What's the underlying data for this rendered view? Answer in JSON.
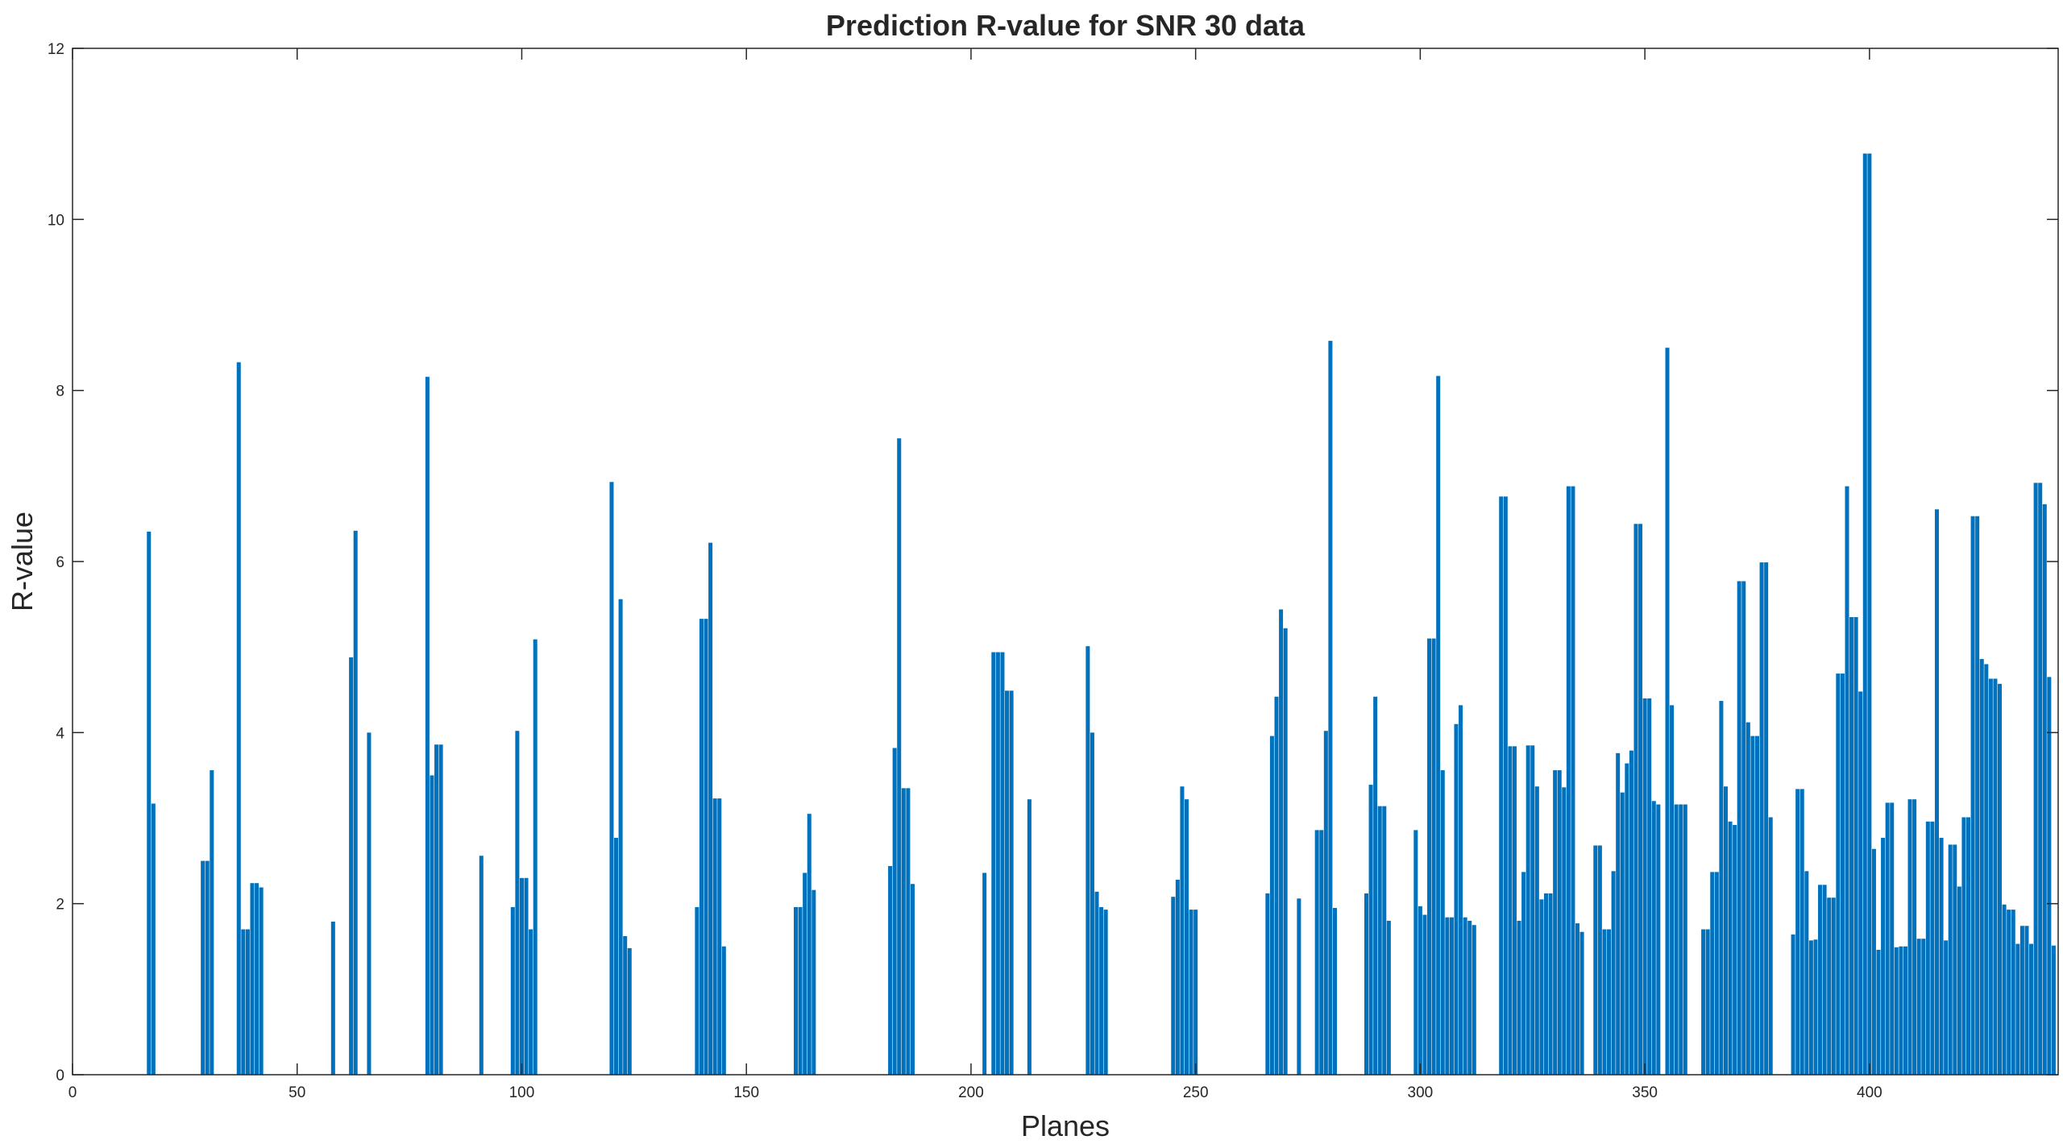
{
  "chart_data": {
    "type": "bar",
    "title": "Prediction R-value for SNR 30 data",
    "xlabel": "Planes",
    "ylabel": "R-value",
    "color": "#0072bd",
    "grid": false,
    "xlim": [
      0,
      442
    ],
    "ylim": [
      0,
      12
    ],
    "xticks": [
      0,
      50,
      100,
      150,
      200,
      250,
      300,
      350,
      400
    ],
    "yticks": [
      0,
      2,
      4,
      6,
      8,
      10,
      12
    ],
    "x": [
      17,
      18,
      29,
      30,
      31,
      37,
      38,
      39,
      40,
      41,
      42,
      58,
      62,
      63,
      66,
      79,
      80,
      81,
      82,
      91,
      98,
      99,
      100,
      101,
      102,
      103,
      120,
      121,
      122,
      123,
      124,
      139,
      140,
      141,
      142,
      143,
      144,
      145,
      161,
      162,
      163,
      164,
      165,
      182,
      183,
      184,
      185,
      186,
      187,
      203,
      205,
      206,
      207,
      208,
      209,
      213,
      226,
      227,
      228,
      229,
      230,
      245,
      246,
      247,
      248,
      249,
      250,
      266,
      267,
      268,
      269,
      270,
      273,
      277,
      278,
      279,
      280,
      281,
      288,
      289,
      290,
      291,
      292,
      293,
      299,
      300,
      301,
      302,
      303,
      304,
      305,
      306,
      307,
      308,
      309,
      310,
      311,
      312,
      318,
      319,
      320,
      321,
      322,
      323,
      324,
      325,
      326,
      327,
      328,
      329,
      330,
      331,
      332,
      333,
      334,
      335,
      336,
      339,
      340,
      341,
      342,
      343,
      344,
      345,
      346,
      347,
      348,
      349,
      350,
      351,
      352,
      353,
      355,
      356,
      357,
      358,
      359,
      363,
      364,
      365,
      366,
      367,
      368,
      369,
      370,
      371,
      372,
      373,
      374,
      375,
      376,
      377,
      378,
      383,
      384,
      385,
      386,
      387,
      388,
      389,
      390,
      391,
      392,
      393,
      394,
      395,
      396,
      397,
      398,
      399,
      400,
      401,
      402,
      403,
      404,
      405,
      406,
      407,
      408,
      409,
      410,
      411,
      412,
      413,
      414,
      415,
      416,
      417,
      418,
      419,
      420,
      421,
      422,
      423,
      424,
      425,
      426,
      427,
      428,
      429,
      430,
      431,
      432,
      433,
      434,
      435,
      436,
      437,
      438,
      439,
      440,
      441
    ],
    "values": [
      6.35,
      3.17,
      2.5,
      2.5,
      3.56,
      8.33,
      1.7,
      1.7,
      2.24,
      2.24,
      2.19,
      1.79,
      4.88,
      6.36,
      4.0,
      8.16,
      3.5,
      3.86,
      3.86,
      2.56,
      1.96,
      4.02,
      2.3,
      2.3,
      1.7,
      5.09,
      6.93,
      2.77,
      5.56,
      1.62,
      1.48,
      1.96,
      5.33,
      5.33,
      6.22,
      3.23,
      3.23,
      1.5,
      1.96,
      1.96,
      2.36,
      3.05,
      2.16,
      2.44,
      3.82,
      7.44,
      3.35,
      3.35,
      2.23,
      2.36,
      4.94,
      4.94,
      4.94,
      4.49,
      4.49,
      3.22,
      5.01,
      4.0,
      2.14,
      1.96,
      1.93,
      2.08,
      2.28,
      3.37,
      3.22,
      1.93,
      1.93,
      2.12,
      3.96,
      4.42,
      5.44,
      5.22,
      2.06,
      2.86,
      2.86,
      4.02,
      8.58,
      1.95,
      2.12,
      3.39,
      4.42,
      3.14,
      3.14,
      1.8,
      2.86,
      1.97,
      1.87,
      5.1,
      5.1,
      8.17,
      3.56,
      1.84,
      1.84,
      4.1,
      4.32,
      1.84,
      1.8,
      1.75,
      6.76,
      6.76,
      3.84,
      3.84,
      1.8,
      2.37,
      3.85,
      3.85,
      3.37,
      2.05,
      2.12,
      2.12,
      3.56,
      3.56,
      3.36,
      6.88,
      6.88,
      1.77,
      1.67,
      2.68,
      2.68,
      1.7,
      1.7,
      2.38,
      3.76,
      3.3,
      3.64,
      3.79,
      6.44,
      6.44,
      4.4,
      4.4,
      3.2,
      3.16,
      8.5,
      4.32,
      3.16,
      3.16,
      3.16,
      1.7,
      1.7,
      2.37,
      2.37,
      4.37,
      3.37,
      2.96,
      2.92,
      5.77,
      5.77,
      4.12,
      3.96,
      3.96,
      5.99,
      5.99,
      3.01,
      1.64,
      3.34,
      3.34,
      2.38,
      1.57,
      1.58,
      2.22,
      2.22,
      2.07,
      2.07,
      4.69,
      4.69,
      6.88,
      5.35,
      5.35,
      4.48,
      10.77,
      10.77,
      2.64,
      1.46,
      2.77,
      3.18,
      3.18,
      1.49,
      1.5,
      1.5,
      3.22,
      3.22,
      1.59,
      1.59,
      2.96,
      2.96,
      6.61,
      2.77,
      1.57,
      2.69,
      2.69,
      2.2,
      3.01,
      3.01,
      6.53,
      6.53,
      4.86,
      4.8,
      4.63,
      4.63,
      4.57,
      1.99,
      1.93,
      1.93,
      1.53,
      1.74,
      1.74,
      1.53,
      6.92,
      6.92,
      6.67,
      4.65,
      1.51
    ]
  }
}
